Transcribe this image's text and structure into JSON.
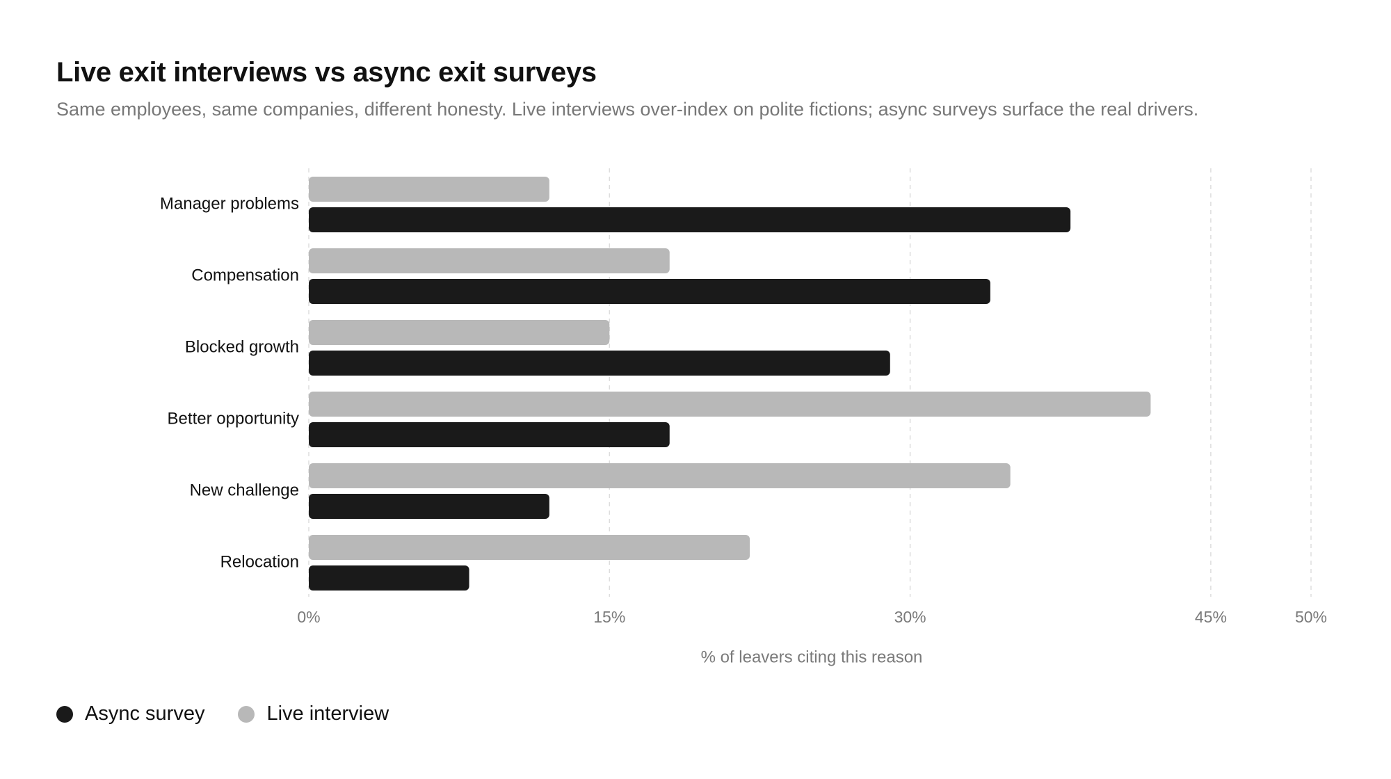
{
  "title": "Live exit interviews vs async exit surveys",
  "subtitle": "Same employees, same companies, different honesty. Live interviews over-index on polite fictions; async surveys surface the real drivers.",
  "legend": {
    "items": [
      {
        "label": "Async survey",
        "color": "#1a1a1a"
      },
      {
        "label": "Live interview",
        "color": "#b8b8b8"
      }
    ]
  },
  "chart_data": {
    "type": "bar",
    "orientation": "horizontal",
    "categories": [
      "Manager problems",
      "Compensation",
      "Blocked growth",
      "Better opportunity",
      "New challenge",
      "Relocation"
    ],
    "series": [
      {
        "name": "Live interview",
        "color": "#b8b8b8",
        "values": [
          12,
          18,
          15,
          42,
          35,
          22
        ]
      },
      {
        "name": "Async survey",
        "color": "#1a1a1a",
        "values": [
          38,
          34,
          29,
          18,
          12,
          8
        ]
      }
    ],
    "xlabel": "% of leavers citing this reason",
    "ylabel": "",
    "xlim": [
      0,
      50
    ],
    "ticks": [
      0,
      15,
      30,
      45,
      50
    ],
    "tick_labels": [
      "0%",
      "15%",
      "30%",
      "45%",
      "50%"
    ],
    "grid": true,
    "legend_position": "bottom-left"
  }
}
